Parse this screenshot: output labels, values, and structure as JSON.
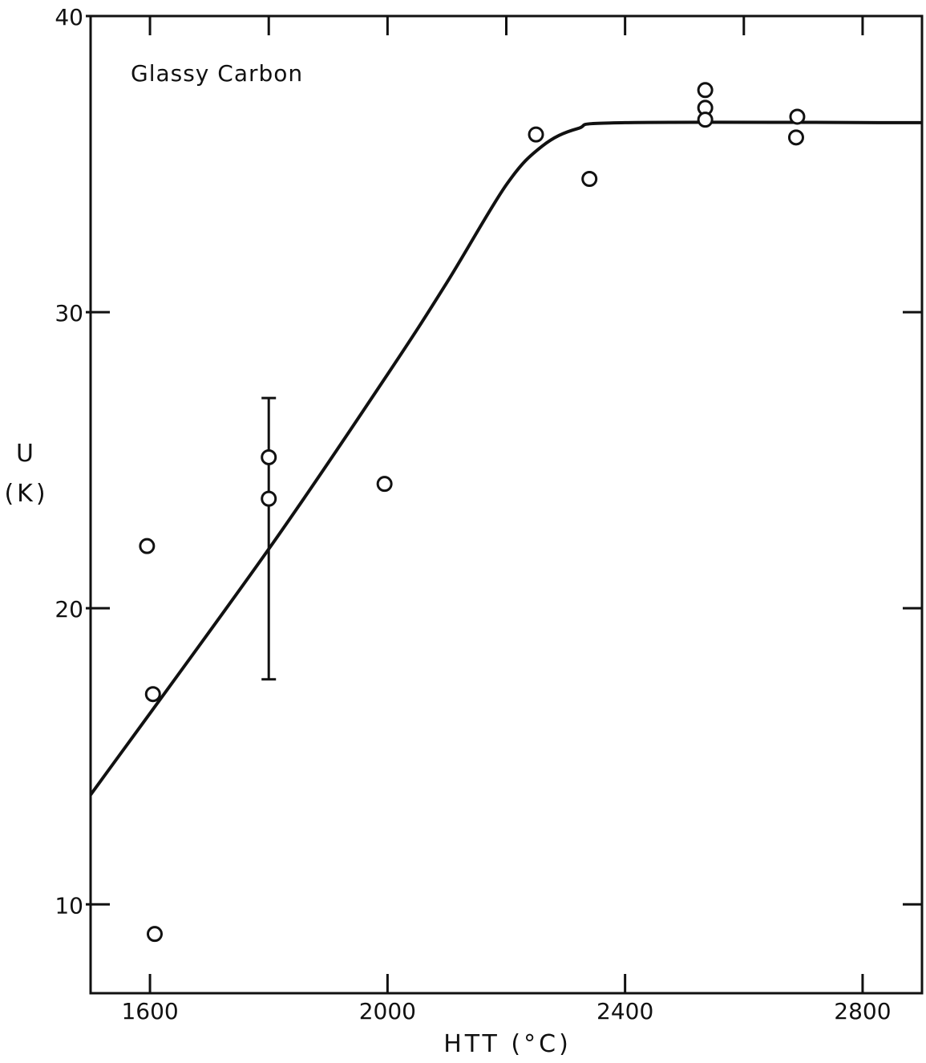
{
  "chart_data": {
    "type": "scatter",
    "annotation": "Glassy Carbon",
    "xlabel": "HTT (°C)",
    "ylabel_line1": "U",
    "ylabel_line2": "(K)",
    "xlim": [
      1500,
      2900
    ],
    "ylim": [
      7,
      40
    ],
    "x_ticks": [
      1600,
      2000,
      2400,
      2800
    ],
    "x_tick_labels": [
      "1600",
      "2000",
      "2400",
      "2800"
    ],
    "x_minor_ticks": [
      1800,
      2200,
      2600
    ],
    "y_ticks": [
      10,
      20,
      30,
      40
    ],
    "y_tick_labels": [
      "10",
      "20",
      "30",
      "40"
    ],
    "grid": false,
    "points": [
      {
        "x": 1595,
        "y": 22.1
      },
      {
        "x": 1605,
        "y": 17.1
      },
      {
        "x": 1608,
        "y": 9.0
      },
      {
        "x": 1800,
        "y": 25.1
      },
      {
        "x": 1800,
        "y": 23.7
      },
      {
        "x": 1995,
        "y": 24.2
      },
      {
        "x": 2250,
        "y": 36.0
      },
      {
        "x": 2340,
        "y": 34.5
      },
      {
        "x": 2535,
        "y": 37.5
      },
      {
        "x": 2535,
        "y": 36.9
      },
      {
        "x": 2535,
        "y": 36.5
      },
      {
        "x": 2690,
        "y": 36.6
      },
      {
        "x": 2688,
        "y": 35.9
      }
    ],
    "error_bars": [
      {
        "x": 1800,
        "y_low": 17.6,
        "y_high": 27.1
      }
    ],
    "fit_curve": [
      [
        1500,
        13.7
      ],
      [
        1800,
        22.0
      ],
      [
        2000,
        27.9
      ],
      [
        2100,
        31.0
      ],
      [
        2200,
        34.3
      ],
      [
        2260,
        35.6
      ],
      [
        2320,
        36.2
      ],
      [
        2400,
        36.4
      ],
      [
        2900,
        36.4
      ]
    ]
  }
}
